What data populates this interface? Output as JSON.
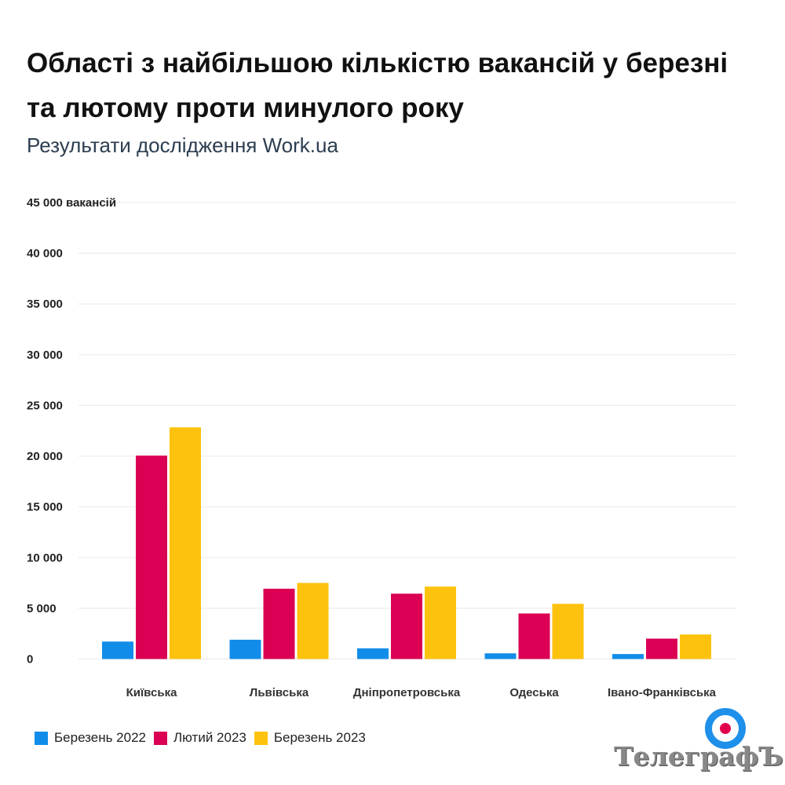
{
  "title": "Області з найбільшою кількістю вакансій у березні та лютому проти минулого року",
  "subtitle": "Результати дослідження Work.ua",
  "chart_data": {
    "type": "bar",
    "title": "Області з найбільшою кількістю вакансій у березні та лютому проти минулого року",
    "subtitle": "Результати дослідження Work.ua",
    "xlabel": "",
    "ylabel": "вакансій",
    "ylim": [
      0,
      45000
    ],
    "yticks": [
      0,
      5000,
      10000,
      15000,
      20000,
      25000,
      30000,
      35000,
      40000,
      45000
    ],
    "ytick_labels": [
      "0",
      "5 000",
      "10 000",
      "15 000",
      "20 000",
      "25 000",
      "30 000",
      "35 000",
      "40 000",
      "45 000 вакансій"
    ],
    "grid": true,
    "legend_position": "bottom-left",
    "categories": [
      "Київська",
      "Львівська",
      "Дніпропетровська",
      "Одеська",
      "Івано-Франківська"
    ],
    "series": [
      {
        "name": "Березень 2022",
        "color": "#118de9",
        "values": [
          1720,
          1900,
          1050,
          560,
          490
        ]
      },
      {
        "name": "Лютий 2023",
        "color": "#db0054",
        "values": [
          20050,
          6930,
          6440,
          4490,
          2010
        ]
      },
      {
        "name": "Березень 2023",
        "color": "#fdc20d",
        "values": [
          22840,
          7500,
          7140,
          5440,
          2420
        ]
      }
    ]
  },
  "logo": {
    "text": "ТелеграфЪ"
  }
}
